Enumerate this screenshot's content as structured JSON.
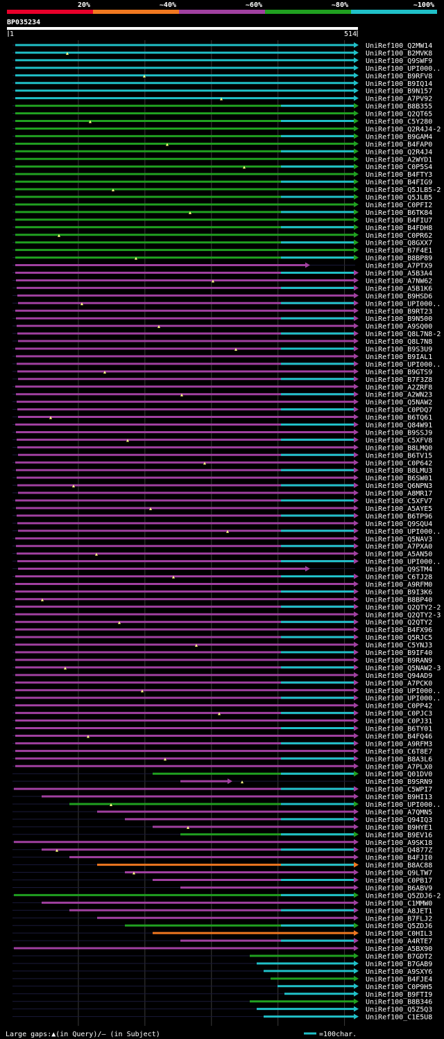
{
  "chart_data": {
    "type": "alignment-overview",
    "query_id": "BP035234",
    "ruler": {
      "start_label": "1",
      "end_label": "514",
      "start": 1,
      "end": 514
    },
    "identity_legend": [
      {
        "label": "20%",
        "color": "#e8002a"
      },
      {
        "label": "~40%",
        "color": "#f07820"
      },
      {
        "label": "~60%",
        "color": "#a040a0"
      },
      {
        "label": "~80%",
        "color": "#20a020"
      },
      {
        "label": "~100%",
        "color": "#20c0c8"
      }
    ],
    "footer": {
      "gap_note": "Large gaps:▲(in Query)/– (in Subject)",
      "scale_note": "=100char."
    },
    "hits": [
      {
        "name": "UniRef100_Q2MW14"
      },
      {
        "name": "UniRef100_B2MVK8"
      },
      {
        "name": "UniRef100_Q9SWF9"
      },
      {
        "name": "UniRef100_UPI000.."
      },
      {
        "name": "UniRef100_B9RFV8"
      },
      {
        "name": "UniRef100_B9IQ14"
      },
      {
        "name": "UniRef100_B9N157"
      },
      {
        "name": "UniRef100_A7PV92"
      },
      {
        "name": "UniRef100_B8B355"
      },
      {
        "name": "UniRef100_Q2QT65"
      },
      {
        "name": "UniRef100_C5Y280"
      },
      {
        "name": "UniRef100_Q2R4J4-2"
      },
      {
        "name": "UniRef100_B9GAM4"
      },
      {
        "name": "UniRef100_B4FAP0"
      },
      {
        "name": "UniRef100_Q2R4J4"
      },
      {
        "name": "UniRef100_A2WYD1"
      },
      {
        "name": "UniRef100_C0P5S4"
      },
      {
        "name": "UniRef100_B4FTY3"
      },
      {
        "name": "UniRef100_B4FIG9"
      },
      {
        "name": "UniRef100_Q5JLB5-2"
      },
      {
        "name": "UniRef100_Q5JLB5"
      },
      {
        "name": "UniRef100_C0PFI2"
      },
      {
        "name": "UniRef100_B6TK84"
      },
      {
        "name": "UniRef100_B4FIU7"
      },
      {
        "name": "UniRef100_B4FDH8"
      },
      {
        "name": "UniRef100_C0PR62"
      },
      {
        "name": "UniRef100_Q8GXX7"
      },
      {
        "name": "UniRef100_B7F4E1"
      },
      {
        "name": "UniRef100_B8BP89"
      },
      {
        "name": "UniRef100_A7PTX9"
      },
      {
        "name": "UniRef100_A5B3A4"
      },
      {
        "name": "UniRef100_A7NW62"
      },
      {
        "name": "UniRef100_A5B1K6"
      },
      {
        "name": "UniRef100_B9HSD6"
      },
      {
        "name": "UniRef100_UPI000.."
      },
      {
        "name": "UniRef100_B9RT23"
      },
      {
        "name": "UniRef100_B9N500"
      },
      {
        "name": "UniRef100_A9SQ00"
      },
      {
        "name": "UniRef100_Q8L7N8-2"
      },
      {
        "name": "UniRef100_Q8L7N8"
      },
      {
        "name": "UniRef100_B9S3U9"
      },
      {
        "name": "UniRef100_B9IAL1"
      },
      {
        "name": "UniRef100_UPI000.."
      },
      {
        "name": "UniRef100_B9GTS9"
      },
      {
        "name": "UniRef100_B7F3Z8"
      },
      {
        "name": "UniRef100_A2ZRF8"
      },
      {
        "name": "UniRef100_A2WN23"
      },
      {
        "name": "UniRef100_Q5NAW2"
      },
      {
        "name": "UniRef100_C0PDQ7"
      },
      {
        "name": "UniRef100_B6TQ61"
      },
      {
        "name": "UniRef100_Q84W91"
      },
      {
        "name": "UniRef100_B9SSJ9"
      },
      {
        "name": "UniRef100_C5XFV8"
      },
      {
        "name": "UniRef100_B8LMQ0"
      },
      {
        "name": "UniRef100_B6TV15"
      },
      {
        "name": "UniRef100_C0P642"
      },
      {
        "name": "UniRef100_B8LMU3"
      },
      {
        "name": "UniRef100_B6SW01"
      },
      {
        "name": "UniRef100_Q6NPN3"
      },
      {
        "name": "UniRef100_A8MR17"
      },
      {
        "name": "UniRef100_C5XFV7"
      },
      {
        "name": "UniRef100_A5AYE5"
      },
      {
        "name": "UniRef100_B6TP96"
      },
      {
        "name": "UniRef100_Q9SQU4"
      },
      {
        "name": "UniRef100_UPI000.."
      },
      {
        "name": "UniRef100_Q5NAV3"
      },
      {
        "name": "UniRef100_A7PXA0"
      },
      {
        "name": "UniRef100_A5AN50"
      },
      {
        "name": "UniRef100_UPI000.."
      },
      {
        "name": "UniRef100_Q9STM4"
      },
      {
        "name": "UniRef100_C6TJ28"
      },
      {
        "name": "UniRef100_A9RFM0"
      },
      {
        "name": "UniRef100_B9I3K6"
      },
      {
        "name": "UniRef100_B8BP40"
      },
      {
        "name": "UniRef100_Q2QTY2-2"
      },
      {
        "name": "UniRef100_Q2QTY2-3"
      },
      {
        "name": "UniRef100_Q2QTY2"
      },
      {
        "name": "UniRef100_B4FX96"
      },
      {
        "name": "UniRef100_Q5RJC5"
      },
      {
        "name": "UniRef100_C5YNJ3"
      },
      {
        "name": "UniRef100_B9IF40"
      },
      {
        "name": "UniRef100_B9RAN9"
      },
      {
        "name": "UniRef100_Q5NAW2-3"
      },
      {
        "name": "UniRef100_Q94AD9"
      },
      {
        "name": "UniRef100_A7PCK0"
      },
      {
        "name": "UniRef100_UPI000.."
      },
      {
        "name": "UniRef100_UPI000.."
      },
      {
        "name": "UniRef100_C0PP42"
      },
      {
        "name": "UniRef100_C0PJC3"
      },
      {
        "name": "UniRef100_C0PJ31"
      },
      {
        "name": "UniRef100_B6TY01"
      },
      {
        "name": "UniRef100_B4FQ46"
      },
      {
        "name": "UniRef100_A9RFM3"
      },
      {
        "name": "UniRef100_C6T8E7"
      },
      {
        "name": "UniRef100_B8A3L6"
      },
      {
        "name": "UniRef100_A7PLX0"
      },
      {
        "name": "UniRef100_Q01DV0"
      },
      {
        "name": "UniRef100_B9SRN9"
      },
      {
        "name": "UniRef100_C5WPI7"
      },
      {
        "name": "UniRef100_B9HI13"
      },
      {
        "name": "UniRef100_UPI000.."
      },
      {
        "name": "UniRef100_A7QMN5"
      },
      {
        "name": "UniRef100_Q94IQ3"
      },
      {
        "name": "UniRef100_B9HYE1"
      },
      {
        "name": "UniRef100_B9EV16"
      },
      {
        "name": "UniRef100_A9SK18"
      },
      {
        "name": "UniRef100_Q4877Z"
      },
      {
        "name": "UniRef100_B4FJI0"
      },
      {
        "name": "UniRef100_B8AC88"
      },
      {
        "name": "UniRef100_Q9LTW7"
      },
      {
        "name": "UniRef100_C0PB17"
      },
      {
        "name": "UniRef100_B6ABV9"
      },
      {
        "name": "UniRef100_Q5ZDJ6-2"
      },
      {
        "name": "UniRef100_C1MMW0"
      },
      {
        "name": "UniRef100_A8JET1"
      },
      {
        "name": "UniRef100_B7FLJ2"
      },
      {
        "name": "UniRef100_Q5ZDJ6"
      },
      {
        "name": "UniRef100_C0HIL3"
      },
      {
        "name": "UniRef100_A4RTE7"
      },
      {
        "name": "UniRef100_A5BX90"
      },
      {
        "name": "UniRef100_B7GDT2"
      },
      {
        "name": "UniRef100_B7GAB9"
      },
      {
        "name": "UniRef100_A9SXY6"
      },
      {
        "name": "UniRef100_B4FJE4"
      },
      {
        "name": "UniRef100_C0P9H5"
      },
      {
        "name": "UniRef100_B9FTI9"
      },
      {
        "name": "UniRef100_B8B346"
      },
      {
        "name": "UniRef100_Q5Z5Q3"
      },
      {
        "name": "UniRef100_C1E5U8"
      }
    ]
  }
}
